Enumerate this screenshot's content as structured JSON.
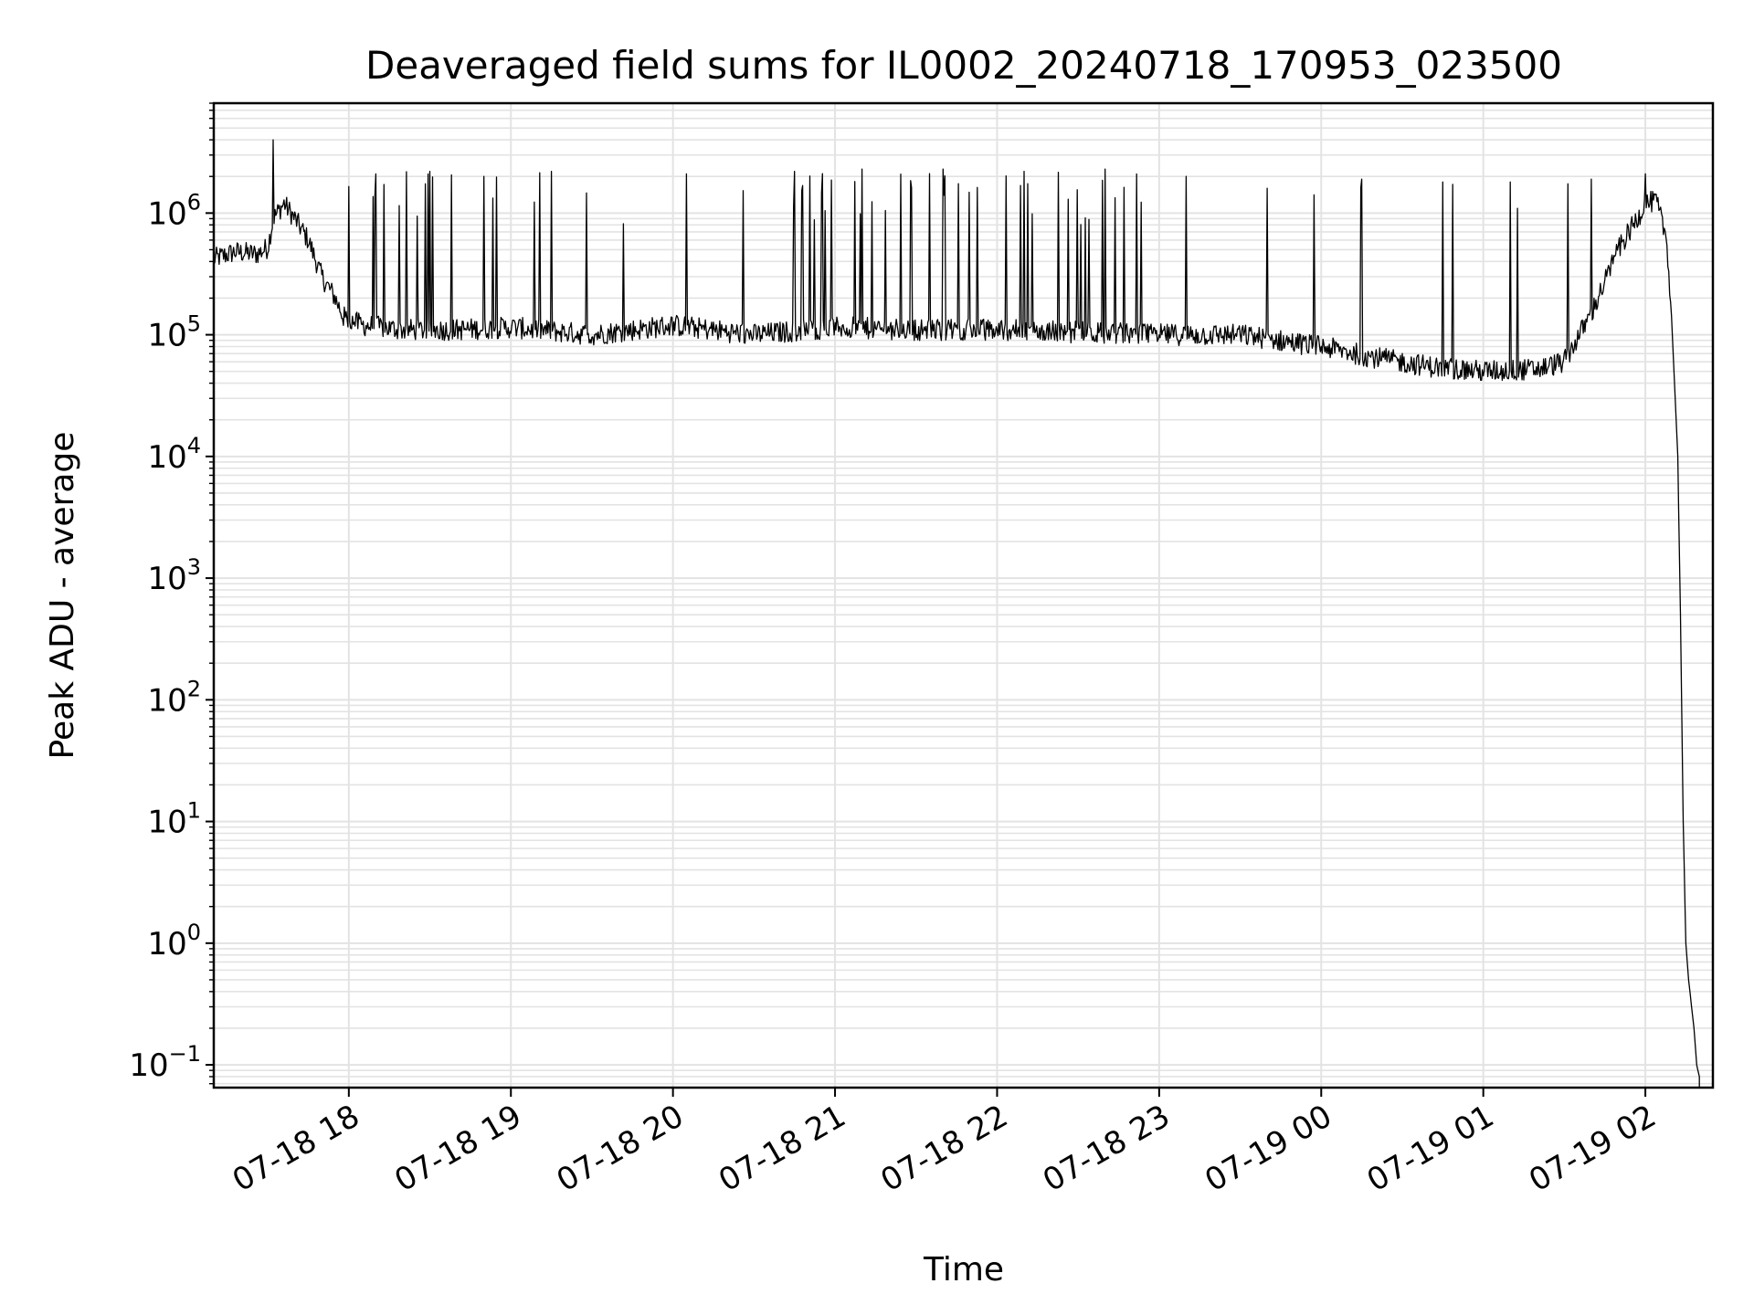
{
  "chart_data": {
    "type": "line",
    "title": "Deaveraged field sums for IL0002_20240718_170953_023500",
    "xlabel": "Time",
    "ylabel": "Peak ADU - average",
    "yscale": "log",
    "ylim": [
      0.065,
      8000000
    ],
    "xlim": [
      "2024-07-18 17:10",
      "2024-07-19 02:25"
    ],
    "grid": true,
    "x_ticks": [
      "07-18 18",
      "07-18 19",
      "07-18 20",
      "07-18 21",
      "07-18 22",
      "07-18 23",
      "07-19 00",
      "07-19 01",
      "07-19 02"
    ],
    "y_ticks": [
      {
        "base": "10",
        "exp": "6"
      },
      {
        "base": "10",
        "exp": "5"
      },
      {
        "base": "10",
        "exp": "4"
      },
      {
        "base": "10",
        "exp": "3"
      },
      {
        "base": "10",
        "exp": "2"
      },
      {
        "base": "10",
        "exp": "1"
      },
      {
        "base": "10",
        "exp": "0"
      },
      {
        "base": "10",
        "exp": "−1"
      }
    ],
    "series": [
      {
        "color": "#000000",
        "x": [
          "2024-07-18 17:10",
          "2024-07-18 17:18",
          "2024-07-18 17:26",
          "2024-07-18 17:30",
          "2024-07-18 17:32",
          "2024-07-18 17:36",
          "2024-07-18 17:40",
          "2024-07-18 17:45",
          "2024-07-18 17:50",
          "2024-07-18 17:55",
          "2024-07-18 17:58",
          "2024-07-18 18:05",
          "2024-07-18 18:20",
          "2024-07-18 18:40",
          "2024-07-18 19:00",
          "2024-07-18 19:30",
          "2024-07-18 20:00",
          "2024-07-18 20:30",
          "2024-07-18 21:00",
          "2024-07-18 21:30",
          "2024-07-18 22:00",
          "2024-07-18 22:30",
          "2024-07-18 23:00",
          "2024-07-18 23:30",
          "2024-07-19 00:00",
          "2024-07-19 00:20",
          "2024-07-19 00:40",
          "2024-07-19 01:00",
          "2024-07-19 01:20",
          "2024-07-19 01:30",
          "2024-07-19 01:40",
          "2024-07-19 01:50",
          "2024-07-19 01:57",
          "2024-07-19 02:00",
          "2024-07-19 02:04",
          "2024-07-19 02:08",
          "2024-07-19 02:10",
          "2024-07-19 02:12",
          "2024-07-19 02:13",
          "2024-07-19 02:14",
          "2024-07-19 02:15",
          "2024-07-19 02:16",
          "2024-07-19 02:18",
          "2024-07-19 02:19",
          "2024-07-19 02:20",
          "2024-07-19 02:20"
        ],
        "y": [
          420000,
          480000,
          460000,
          520000,
          900000,
          1200000,
          900000,
          600000,
          300000,
          200000,
          140000,
          120000,
          110000,
          110000,
          115000,
          100000,
          120000,
          100000,
          115000,
          110000,
          110000,
          105000,
          100000,
          100000,
          80000,
          65000,
          55000,
          50000,
          52000,
          60000,
          150000,
          500000,
          900000,
          1200000,
          1250000,
          600000,
          100000,
          10000,
          500,
          10,
          1,
          0.5,
          0.2,
          0.1,
          0.08,
          0.065
        ],
        "spikes": {
          "description": "frequent sharp spikes up to the values listed at these times",
          "x": [
            "2024-07-18 17:32",
            "2024-07-18 18:10",
            "2024-07-18 18:30",
            "2024-07-18 18:50",
            "2024-07-18 19:15",
            "2024-07-18 20:05",
            "2024-07-18 20:45",
            "2024-07-18 21:10",
            "2024-07-18 21:40",
            "2024-07-18 22:10",
            "2024-07-18 22:40",
            "2024-07-18 23:10",
            "2024-07-18 23:40",
            "2024-07-19 00:15",
            "2024-07-19 00:45",
            "2024-07-19 01:10",
            "2024-07-19 01:40",
            "2024-07-19 02:00"
          ],
          "y": [
            4000000,
            2100000,
            2200000,
            2000000,
            2200000,
            2100000,
            2200000,
            2300000,
            2300000,
            2200000,
            2300000,
            2000000,
            1600000,
            1900000,
            1800000,
            1800000,
            1900000,
            2100000
          ]
        }
      }
    ]
  }
}
